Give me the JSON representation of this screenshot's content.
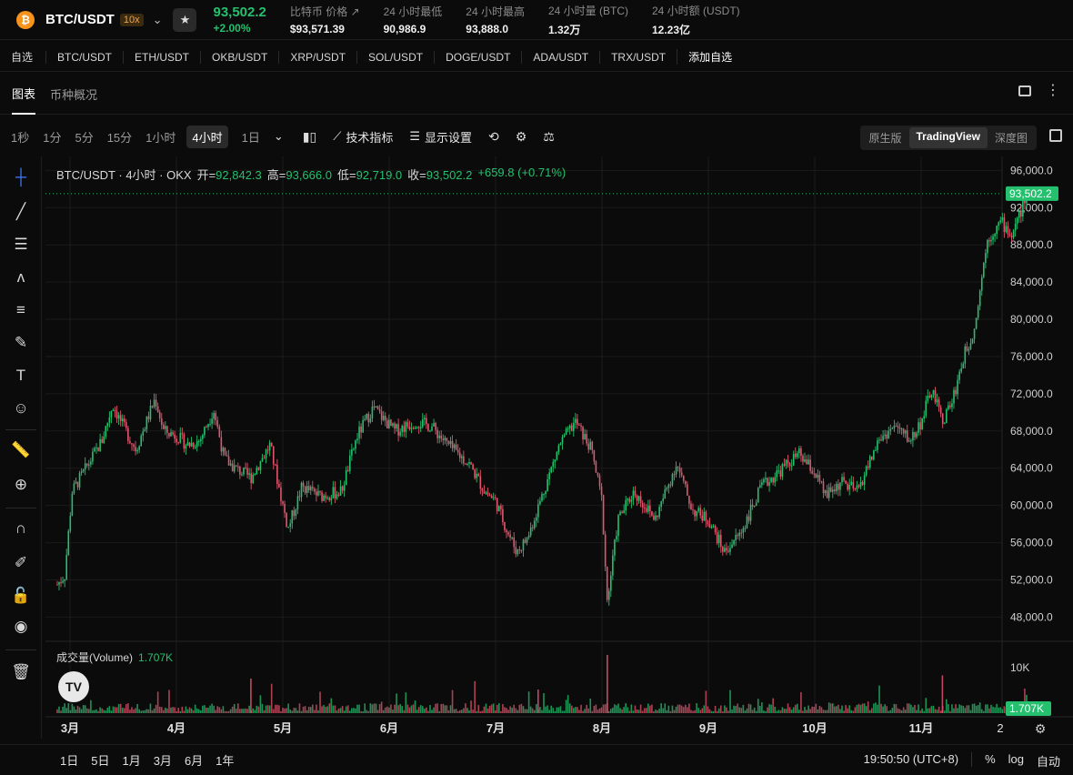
{
  "header": {
    "coin_icon": "₿",
    "pair": "BTC/USDT",
    "leverage": "10x",
    "price": "93,502.2",
    "change": "+2.00%",
    "stats": [
      {
        "label": "比特币 价格 ↗",
        "value": "$93,571.39"
      },
      {
        "label": "24 小时最低",
        "value": "90,986.9"
      },
      {
        "label": "24 小时最高",
        "value": "93,888.0"
      },
      {
        "label": "24 小时量 (BTC)",
        "value": "1.32万"
      },
      {
        "label": "24 小时额 (USDT)",
        "value": "12.23亿"
      }
    ]
  },
  "watchlist": {
    "label": "自选",
    "items": [
      "BTC/USDT",
      "ETH/USDT",
      "OKB/USDT",
      "XRP/USDT",
      "SOL/USDT",
      "DOGE/USDT",
      "ADA/USDT",
      "TRX/USDT"
    ],
    "add": "添加自选"
  },
  "tabs": {
    "chart": "图表",
    "overview": "币种概况"
  },
  "toolbar": {
    "intervals": [
      "1秒",
      "1分",
      "5分",
      "15分",
      "1小时",
      "4小时",
      "1日"
    ],
    "active_interval": "4小时",
    "indicators": "技术指标",
    "display": "显示设置",
    "views": [
      "原生版",
      "TradingView",
      "深度图"
    ],
    "active_view": "TradingView"
  },
  "legend": {
    "title": "BTC/USDT · 4小时 · OKX",
    "open_k": "开=",
    "open": "92,842.3",
    "high_k": "高=",
    "high": "93,666.0",
    "low_k": "低=",
    "low": "92,719.0",
    "close_k": "收=",
    "close": "93,502.2",
    "change": "+659.8 (+0.71%)"
  },
  "volume": {
    "label": "成交量(Volume)",
    "value": "1.707K",
    "tick": "10K",
    "badge": "1.707K"
  },
  "bottom": {
    "ranges": [
      "1日",
      "5日",
      "1月",
      "3月",
      "6月",
      "1年"
    ],
    "time": "19:50:50 (UTC+8)",
    "percent": "%",
    "log": "log",
    "auto": "自动"
  },
  "colors": {
    "up": "#25c06e",
    "down": "#e0566e",
    "bg": "#0b0b0b"
  },
  "chart_data": {
    "type": "candlestick",
    "title": "BTC/USDT · 4小时 · OKX",
    "y_ticks": [
      96000,
      92000,
      88000,
      84000,
      80000,
      76000,
      72000,
      68000,
      64000,
      60000,
      56000,
      52000,
      48000
    ],
    "y_tick_labels": [
      "96,000.0",
      "92,000.0",
      "88,000.0",
      "84,000.0",
      "80,000.0",
      "76,000.0",
      "72,000.0",
      "68,000.0",
      "64,000.0",
      "60,000.0",
      "56,000.0",
      "52,000.0",
      "48,000.0"
    ],
    "ylim": [
      45500,
      97500
    ],
    "last_price": 93502.2,
    "last_price_label": "93,502.2",
    "x_ticks": [
      "3月",
      "4月",
      "5月",
      "6月",
      "7月",
      "8月",
      "9月",
      "10月",
      "11月"
    ],
    "x_tick_positions": [
      0.0,
      1.0,
      2.0,
      3.0,
      4.0,
      5.0,
      6.0,
      7.0,
      8.0
    ],
    "x_end_label": "2",
    "price_path": [
      [
        -0.12,
        51500
      ],
      [
        -0.05,
        52500
      ],
      [
        0.02,
        61500
      ],
      [
        0.15,
        64000
      ],
      [
        0.3,
        67000
      ],
      [
        0.4,
        70800
      ],
      [
        0.5,
        68500
      ],
      [
        0.62,
        66000
      ],
      [
        0.8,
        71500
      ],
      [
        0.88,
        68000
      ],
      [
        1.0,
        67500
      ],
      [
        1.1,
        66500
      ],
      [
        1.22,
        67000
      ],
      [
        1.35,
        70300
      ],
      [
        1.45,
        65000
      ],
      [
        1.55,
        64000
      ],
      [
        1.7,
        63000
      ],
      [
        1.88,
        66500
      ],
      [
        2.0,
        60000
      ],
      [
        2.05,
        57500
      ],
      [
        2.18,
        62000
      ],
      [
        2.35,
        61000
      ],
      [
        2.55,
        61500
      ],
      [
        2.7,
        67500
      ],
      [
        2.85,
        70500
      ],
      [
        3.05,
        68000
      ],
      [
        3.25,
        69000
      ],
      [
        3.4,
        68500
      ],
      [
        3.55,
        66500
      ],
      [
        3.75,
        64500
      ],
      [
        3.9,
        61500
      ],
      [
        4.0,
        60500
      ],
      [
        4.1,
        57500
      ],
      [
        4.2,
        55000
      ],
      [
        4.3,
        56500
      ],
      [
        4.45,
        61500
      ],
      [
        4.6,
        66500
      ],
      [
        4.75,
        69000
      ],
      [
        4.9,
        66000
      ],
      [
        5.0,
        60500
      ],
      [
        5.05,
        49500
      ],
      [
        5.15,
        58500
      ],
      [
        5.3,
        61500
      ],
      [
        5.5,
        58500
      ],
      [
        5.7,
        64500
      ],
      [
        5.85,
        59500
      ],
      [
        6.0,
        58500
      ],
      [
        6.15,
        55000
      ],
      [
        6.3,
        57000
      ],
      [
        6.5,
        62000
      ],
      [
        6.65,
        63500
      ],
      [
        6.85,
        65500
      ],
      [
        7.0,
        63500
      ],
      [
        7.1,
        61000
      ],
      [
        7.25,
        62500
      ],
      [
        7.4,
        61500
      ],
      [
        7.6,
        67000
      ],
      [
        7.75,
        68500
      ],
      [
        7.9,
        67000
      ],
      [
        8.0,
        69000
      ],
      [
        8.1,
        72500
      ],
      [
        8.2,
        69000
      ],
      [
        8.3,
        71500
      ],
      [
        8.4,
        76000
      ],
      [
        8.5,
        79000
      ],
      [
        8.62,
        88500
      ],
      [
        8.75,
        90500
      ],
      [
        8.85,
        89000
      ],
      [
        9.0,
        93500
      ]
    ],
    "volume_ylim": [
      0,
      14000
    ],
    "volume_tick": 10000
  }
}
